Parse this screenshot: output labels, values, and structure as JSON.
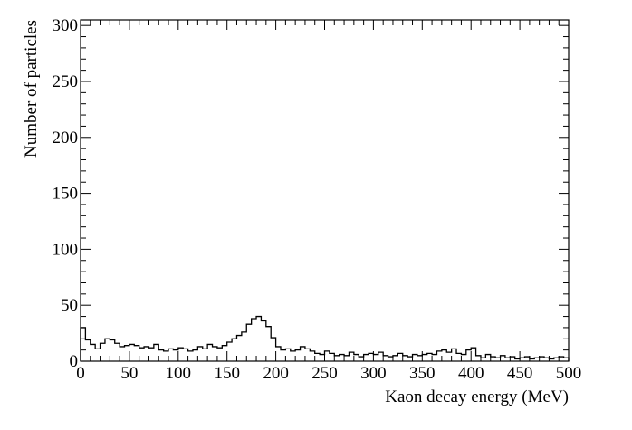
{
  "chart_data": {
    "type": "histogram",
    "xlabel": "Kaon decay energy (MeV)",
    "ylabel": "Number of particles",
    "xlim": [
      0,
      500
    ],
    "ylim": [
      0,
      305
    ],
    "bin_width": 5,
    "x_ticks": [
      0,
      50,
      100,
      150,
      200,
      250,
      300,
      350,
      400,
      450,
      500
    ],
    "y_ticks": [
      0,
      50,
      100,
      150,
      200,
      250,
      300
    ],
    "grid": false,
    "values": [
      30,
      19,
      15,
      11,
      16,
      20,
      19,
      16,
      13,
      14,
      15,
      14,
      12,
      13,
      12,
      15,
      10,
      9,
      11,
      10,
      12,
      11,
      9,
      10,
      13,
      11,
      15,
      13,
      12,
      14,
      17,
      20,
      23,
      26,
      33,
      38,
      40,
      36,
      31,
      21,
      13,
      10,
      11,
      9,
      10,
      13,
      11,
      9,
      7,
      6,
      9,
      7,
      5,
      6,
      5,
      8,
      6,
      4,
      6,
      7,
      6,
      8,
      5,
      4,
      5,
      7,
      5,
      4,
      6,
      5,
      6,
      7,
      6,
      9,
      10,
      8,
      11,
      7,
      6,
      10,
      12,
      5,
      3,
      6,
      4,
      3,
      5,
      3,
      4,
      2,
      3,
      4,
      2,
      3,
      4,
      3,
      2,
      3,
      4,
      3
    ]
  }
}
